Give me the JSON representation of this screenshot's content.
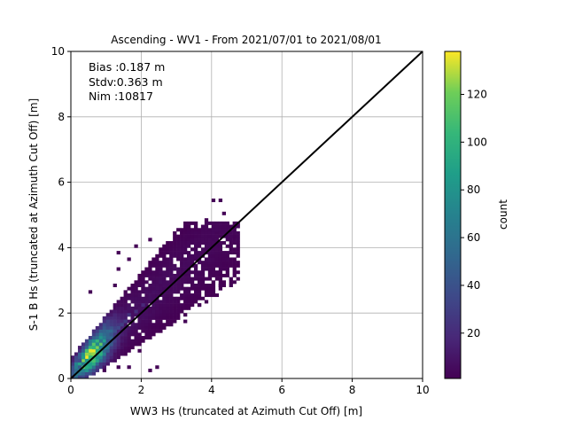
{
  "chart_data": {
    "type": "heatmap",
    "title": "Ascending - WV1 - From 2021/07/01 to 2021/08/01",
    "xlabel": "WW3 Hs (truncated at Azimuth Cut Off) [m]",
    "ylabel": "S-1 B Hs (truncated at Azimuth Cut Off) [m]",
    "xlim": [
      0,
      10
    ],
    "ylim": [
      0,
      10
    ],
    "x_ticks": [
      "0",
      "2",
      "4",
      "6",
      "8",
      "10"
    ],
    "y_ticks": [
      "0",
      "2",
      "4",
      "6",
      "8",
      "10"
    ],
    "grid": true,
    "colormap": "viridis",
    "colorbar": {
      "label": "count",
      "range": [
        1,
        138
      ],
      "ticks": [
        "20",
        "40",
        "60",
        "80",
        "100",
        "120"
      ]
    },
    "annotation_lines": [
      "Bias :0.187 m",
      "Stdv:0.363 m",
      "Nim :10817"
    ],
    "reference_line": {
      "from": [
        0,
        0
      ],
      "to": [
        10,
        10
      ],
      "color": "#000000"
    },
    "bin_size": 0.1,
    "dense_core": [
      [
        0.5,
        0.8,
        135
      ],
      [
        0.6,
        0.7,
        125
      ],
      [
        0.4,
        0.8,
        110
      ],
      [
        0.5,
        0.6,
        105
      ],
      [
        0.6,
        0.9,
        100
      ],
      [
        0.7,
        0.8,
        95
      ],
      [
        0.3,
        0.6,
        85
      ],
      [
        0.4,
        0.5,
        80
      ],
      [
        0.7,
        1.0,
        75
      ],
      [
        0.8,
        0.9,
        70
      ],
      [
        0.3,
        0.4,
        65
      ],
      [
        0.8,
        1.1,
        60
      ],
      [
        0.9,
        1.0,
        55
      ],
      [
        1.0,
        1.2,
        50
      ],
      [
        0.2,
        0.3,
        45
      ],
      [
        1.1,
        1.3,
        42
      ],
      [
        1.0,
        1.1,
        40
      ],
      [
        1.2,
        1.4,
        38
      ],
      [
        0.2,
        0.5,
        36
      ],
      [
        1.3,
        1.5,
        34
      ],
      [
        1.4,
        1.6,
        30
      ],
      [
        1.5,
        1.7,
        27
      ],
      [
        1.6,
        1.9,
        24
      ],
      [
        1.8,
        2.0,
        22
      ],
      [
        2.0,
        2.2,
        18
      ]
    ],
    "sparse_outliers": [
      [
        4.0,
        5.4
      ],
      [
        4.2,
        5.4
      ],
      [
        3.8,
        4.8
      ],
      [
        4.3,
        5.0
      ],
      [
        4.6,
        4.3
      ],
      [
        4.5,
        4.6
      ],
      [
        1.8,
        4.0
      ],
      [
        2.2,
        4.2
      ],
      [
        1.3,
        3.8
      ],
      [
        1.6,
        3.6
      ],
      [
        1.3,
        3.3
      ],
      [
        1.2,
        2.8
      ],
      [
        0.5,
        2.6
      ],
      [
        4.2,
        2.8
      ],
      [
        4.5,
        2.8
      ],
      [
        3.2,
        1.7
      ],
      [
        2.4,
        0.3
      ],
      [
        2.2,
        0.2
      ],
      [
        1.9,
        0.8
      ],
      [
        1.3,
        0.3
      ],
      [
        1.6,
        0.3
      ],
      [
        0.9,
        0.2
      ],
      [
        4.1,
        3.2
      ],
      [
        3.6,
        2.2
      ]
    ]
  }
}
